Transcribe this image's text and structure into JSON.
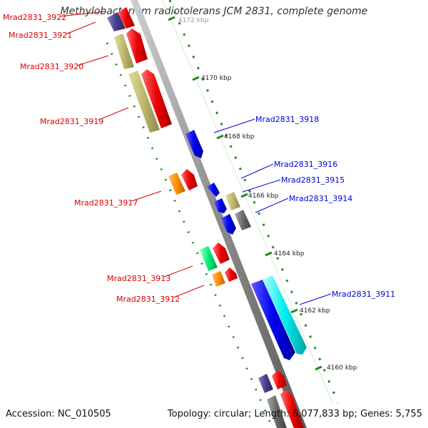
{
  "title": "Methylobacterium radiotolerans JCM 2831, complete genome",
  "footer": {
    "accession": "Accession: NC_010505",
    "summary": "Topology: circular; Length: 6,077,833 bp; Genes: 5,755"
  },
  "colors": {
    "red": "#ee0000",
    "blue": "#0000ee",
    "khaki": "#bdb76b",
    "orange": "#ff8c00",
    "spring_green": "#00ee76",
    "cyan": "#00eeee",
    "dark_slate_blue": "#483d8b",
    "gray": "#696969",
    "tick_green": "#228b22",
    "backbone": "#8c8c8c"
  },
  "scale": {
    "ticks": [
      "4172 kbp",
      "4170 kbp",
      "4168 kbp",
      "4166 kbp",
      "4164 kbp",
      "4162 kbp",
      "4160 kbp"
    ]
  },
  "gene_labels": {
    "left": [
      "Mrad2831_3922",
      "Mrad2831_3921",
      "Mrad2831_3920",
      "Mrad2831_3919",
      "Mrad2831_3917",
      "Mrad2831_3913",
      "Mrad2831_3912"
    ],
    "right": [
      "Mrad2831_3918",
      "Mrad2831_3916",
      "Mrad2831_3915",
      "Mrad2831_3914",
      "Mrad2831_3911"
    ]
  }
}
